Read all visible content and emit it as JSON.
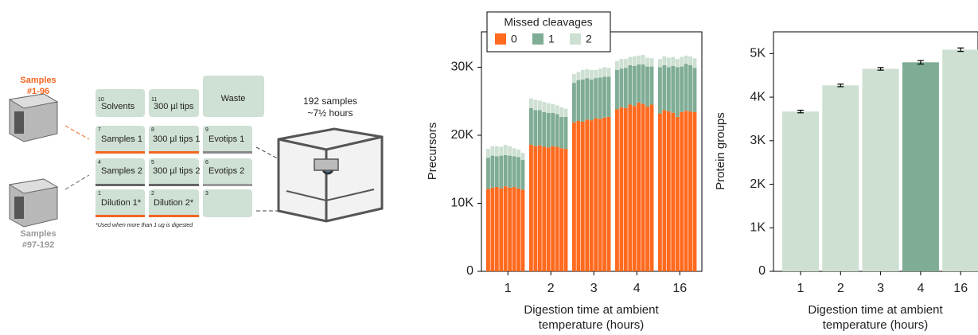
{
  "diagram": {
    "sample_racks": [
      {
        "label": "Samples",
        "range": "#1-96"
      },
      {
        "label": "Samples",
        "range": "#97-192"
      }
    ],
    "deck": [
      {
        "number": "10",
        "label": "Solvents"
      },
      {
        "number": "11",
        "label": "300 µl tips"
      },
      {
        "label": "Waste"
      },
      {
        "number": "7",
        "label": "Samples 1"
      },
      {
        "number": "8",
        "label": "300 µl tips 1"
      },
      {
        "number": "9",
        "label": "Evotips 1"
      },
      {
        "number": "4",
        "label": "Samples 2"
      },
      {
        "number": "5",
        "label": "300 µl tips 2"
      },
      {
        "number": "6",
        "label": "Evotips 2"
      },
      {
        "number": "1",
        "label": "Dilution 1*"
      },
      {
        "number": "2",
        "label": "Dilution 2*"
      },
      {
        "number": "3"
      }
    ],
    "footnote": "*Used when more than 1 ug is digested",
    "run_samples": "192 samples",
    "run_time": "~7½ hours"
  },
  "chart_data": [
    {
      "type": "bar",
      "stacked": true,
      "legend": "top left",
      "legend_title": "Missed cleavages",
      "y_label": "Precursors",
      "x_label": "Digestion time at ambient temperature (hours)",
      "categories": [
        null,
        null,
        null,
        null,
        "1",
        null,
        null,
        null,
        null,
        null,
        null,
        null,
        null,
        "2",
        null,
        null,
        null,
        null,
        null,
        null,
        null,
        null,
        "3",
        null,
        null,
        null,
        null,
        null,
        null,
        null,
        null,
        "4",
        null,
        null,
        null,
        null,
        null,
        null,
        null,
        null,
        "16",
        null,
        null,
        null,
        null
      ],
      "series": [
        {
          "name": "0",
          "color": "#ff6a1f",
          "values": [
            12100,
            12300,
            12400,
            12200,
            12500,
            12300,
            12400,
            12200,
            12000,
            18600,
            18400,
            18500,
            18300,
            18200,
            18400,
            18300,
            18100,
            18000,
            21900,
            22100,
            22000,
            22300,
            22200,
            22500,
            22400,
            22600,
            22700,
            23800,
            24100,
            24000,
            24500,
            24300,
            24800,
            24600,
            24200,
            24500,
            23200,
            23700,
            23500,
            23300,
            22700,
            23400,
            23600,
            23500,
            23400
          ]
        },
        {
          "name": "1",
          "color": "#7fac95",
          "values": [
            4600,
            4700,
            4500,
            4800,
            4600,
            4700,
            4500,
            4600,
            4400,
            5400,
            5300,
            5200,
            5100,
            5100,
            4900,
            4800,
            4600,
            4700,
            5800,
            6000,
            6200,
            6100,
            6000,
            5900,
            6100,
            6000,
            5900,
            5800,
            5700,
            5900,
            5800,
            5900,
            5600,
            5800,
            5900,
            5600,
            6800,
            6600,
            6500,
            6900,
            7300,
            6700,
            6900,
            6800,
            6500
          ]
        },
        {
          "name": "2",
          "color": "#cde0d2",
          "values": [
            1300,
            1400,
            1500,
            1300,
            1500,
            1400,
            1200,
            1100,
            1000,
            1400,
            1500,
            1400,
            1500,
            1400,
            1300,
            1300,
            1400,
            1200,
            1300,
            1200,
            1400,
            1300,
            1400,
            1200,
            1300,
            1400,
            1300,
            1300,
            1400,
            1300,
            1200,
            1400,
            1300,
            1400,
            1300,
            1200,
            1200,
            1300,
            1400,
            1300,
            1200,
            1400,
            1200,
            1300,
            1400
          ]
        }
      ],
      "ylim": [
        0,
        35200
      ],
      "yticks": [
        0,
        {
          "value": 10000,
          "label": "10K"
        },
        {
          "value": 20000,
          "label": "20K"
        },
        {
          "value": 30000,
          "label": "30K"
        }
      ]
    },
    {
      "type": "bar",
      "y_label": "Protein groups",
      "x_label": "Digestion time at ambient temperature (hours)",
      "categories": [
        "1",
        "2",
        "3",
        "4",
        "16"
      ],
      "values": [
        3670,
        4270,
        4650,
        4800,
        5090
      ],
      "errors": [
        30,
        30,
        30,
        40,
        40
      ],
      "colors": [
        "#cde0d2",
        "#cde0d2",
        "#cde0d2",
        "#7fac95",
        "#cde0d2"
      ],
      "ylim": [
        0,
        5500
      ],
      "yticks": [
        0,
        {
          "value": 1000,
          "label": "1K"
        },
        {
          "value": 2000,
          "label": "2K"
        },
        {
          "value": 3000,
          "label": "3K"
        },
        {
          "value": 4000,
          "label": "4K"
        },
        {
          "value": 5000,
          "label": "5K"
        }
      ]
    }
  ]
}
